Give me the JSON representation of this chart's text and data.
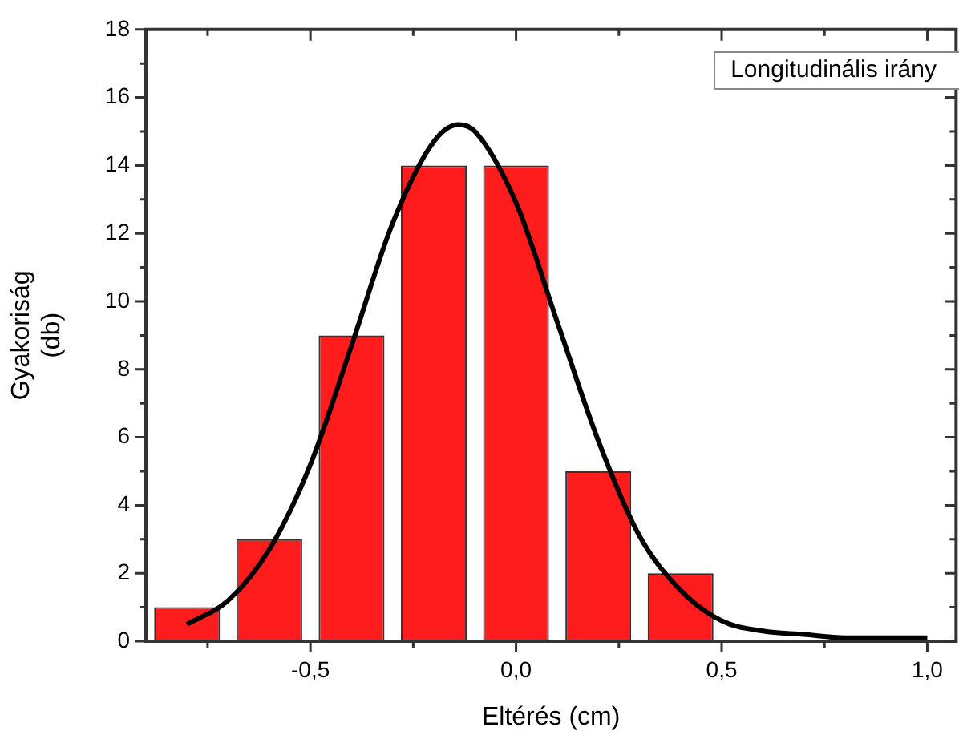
{
  "chart_data": {
    "type": "bar",
    "xlabel": "Eltérés (cm)",
    "ylabel": "Gyakoriság\n(db)",
    "x": [
      -0.8,
      -0.6,
      -0.4,
      -0.2,
      0.0,
      0.2,
      0.4
    ],
    "series": [
      {
        "color": "#ff1c1c",
        "values": [
          1,
          3,
          9,
          14,
          14,
          5,
          2
        ]
      },
      {
        "type": "line",
        "color": "#000000",
        "marker": "none",
        "x": [
          -0.8,
          -0.7,
          -0.6,
          -0.5,
          -0.4,
          -0.3,
          -0.2,
          -0.14,
          -0.1,
          0.0,
          0.1,
          0.2,
          0.3,
          0.4,
          0.5,
          0.6,
          0.7,
          0.8,
          0.9,
          1.0
        ],
        "values": [
          0.5,
          1.2,
          2.7,
          5.2,
          8.7,
          12.3,
          14.7,
          15.2,
          15.0,
          12.9,
          9.4,
          5.9,
          3.1,
          1.5,
          0.6,
          0.3,
          0.2,
          0.1,
          0.1,
          0.1
        ]
      }
    ],
    "xlim": [
      -0.9,
      1.07
    ],
    "xticks": [
      {
        "value": -0.75,
        "label": null
      },
      {
        "value": -0.5,
        "label": "-0,5"
      },
      {
        "value": -0.25,
        "label": null
      },
      {
        "value": 0,
        "label": "0,0"
      },
      {
        "value": 0.25,
        "label": null
      },
      {
        "value": 0.5,
        "label": "0,5"
      },
      {
        "value": 0.75,
        "label": null
      },
      {
        "value": 1.0,
        "label": "1,0"
      }
    ],
    "ylim": [
      0,
      18
    ],
    "yticks": [
      0,
      {
        "value": 1,
        "label": null
      },
      2,
      {
        "value": 3,
        "label": null
      },
      4,
      {
        "value": 5,
        "label": null
      },
      6,
      {
        "value": 7,
        "label": null
      },
      8,
      {
        "value": 9,
        "label": null
      },
      10,
      {
        "value": 11,
        "label": null
      },
      12,
      {
        "value": 13,
        "label": null
      },
      14,
      {
        "value": 15,
        "label": null
      },
      16,
      {
        "value": 17,
        "label": null
      },
      18
    ],
    "annotations": [
      "Longitudinális irány"
    ],
    "grid": false,
    "legend": false
  }
}
